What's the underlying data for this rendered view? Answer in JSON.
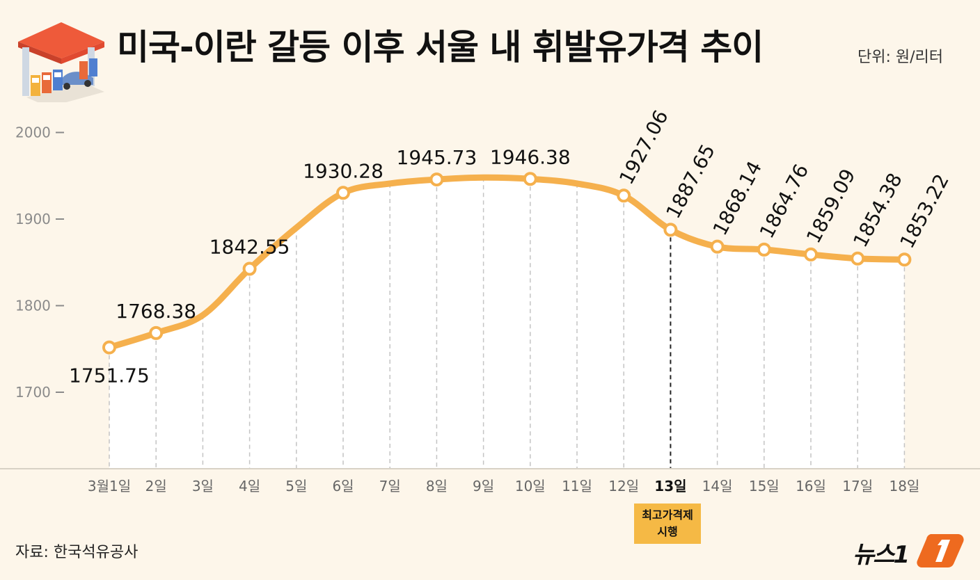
{
  "header": {
    "title": "미국-이란 갈등 이후 서울 내 휘발유가격 추이",
    "unit": "단위: 원/리터"
  },
  "footer": {
    "source": "자료: 한국석유공사",
    "logo": "뉴스1"
  },
  "annotation": {
    "line1": "최고가격제",
    "line2": "시행",
    "category": "13일"
  },
  "colors": {
    "line": "#f5b04d",
    "background": "#fdf6ea",
    "callout": "#f5b945"
  },
  "chart_data": {
    "type": "line",
    "title": "미국-이란 갈등 이후 서울 내 휘발유가격 추이",
    "ylim": [
      1650,
      2010
    ],
    "yticks": [
      1700,
      1800,
      1900,
      2000
    ],
    "categories": [
      "3월1일",
      "2일",
      "3일",
      "4일",
      "5일",
      "6일",
      "7일",
      "8일",
      "9일",
      "10일",
      "11일",
      "12일",
      "13일",
      "14일",
      "15일",
      "16일",
      "17일",
      "18일"
    ],
    "values": [
      1751.75,
      1768.38,
      1789,
      1842.55,
      1890,
      1930.28,
      1941,
      1945.73,
      1948,
      1946.38,
      1941,
      1927.06,
      1887.65,
      1868.14,
      1864.76,
      1859.09,
      1854.38,
      1853.22
    ],
    "point_labels": [
      "1751.75",
      "1768.38",
      "",
      "1842.55",
      "",
      "1930.28",
      "",
      "1945.73",
      "",
      "1946.38",
      "",
      "1927.06",
      "1887.65",
      "1868.14",
      "1864.76",
      "1859.09",
      "1854.38",
      "1853.22"
    ],
    "markers": [
      true,
      true,
      false,
      true,
      false,
      true,
      false,
      true,
      false,
      true,
      false,
      true,
      true,
      true,
      true,
      true,
      true,
      true
    ]
  }
}
